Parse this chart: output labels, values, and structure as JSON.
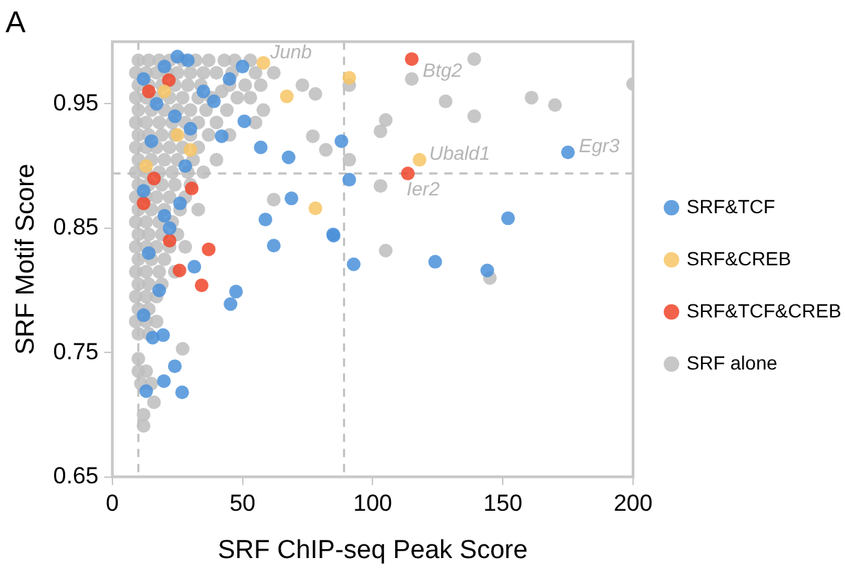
{
  "chart_data": {
    "type": "scatter",
    "title": "A",
    "xlabel": "SRF ChIP-seq Peak Score",
    "ylabel": "SRF Motif Score",
    "xlim": [
      0,
      200
    ],
    "xticks": [
      0,
      50,
      100,
      150,
      200
    ],
    "ylim": [
      0.65,
      1.0
    ],
    "yticks": [
      0.65,
      0.75,
      0.85,
      0.95
    ],
    "grid": false,
    "legend": "right",
    "marker": "circle",
    "ref_lines": [
      {
        "axis": "x",
        "value": 10,
        "color": "#c0c0c0",
        "line_style": "dashed"
      },
      {
        "axis": "x",
        "value": 89,
        "color": "#c0c0c0",
        "line_style": "dashed"
      },
      {
        "axis": "y",
        "value": 0.894,
        "color": "#c0c0c0",
        "line_style": "dashed"
      }
    ],
    "annotations": [
      {
        "text": "Junb",
        "x": 58,
        "y": 0.983
      },
      {
        "text": "Btg2",
        "x": 115,
        "y": 0.986
      },
      {
        "text": "Ubald1",
        "x": 118,
        "y": 0.905
      },
      {
        "text": "Egr3",
        "x": 175,
        "y": 0.911
      },
      {
        "text": "Ier2",
        "x": 113,
        "y": 0.894
      }
    ],
    "series": [
      {
        "name": "SRF&TCF",
        "color": "#4a90d9",
        "x": [
          50,
          39,
          42,
          50.7,
          57,
          67.7,
          88,
          91,
          68.8,
          58.8,
          84.8,
          25,
          29,
          175,
          152,
          124,
          144,
          62,
          85,
          92.7,
          31.5,
          47.5,
          45.4,
          15.5,
          19.5,
          24,
          19.8,
          13,
          26.8,
          12,
          20,
          17,
          24,
          15,
          28,
          12,
          20,
          26,
          14,
          22,
          18,
          12,
          30,
          35,
          45
        ],
        "values": [
          0.98,
          0.952,
          0.924,
          0.936,
          0.915,
          0.907,
          0.92,
          0.889,
          0.874,
          0.857,
          0.845,
          0.988,
          0.985,
          0.911,
          0.858,
          0.823,
          0.816,
          0.836,
          0.844,
          0.821,
          0.819,
          0.799,
          0.789,
          0.762,
          0.764,
          0.739,
          0.727,
          0.719,
          0.718,
          0.97,
          0.98,
          0.95,
          0.94,
          0.92,
          0.9,
          0.88,
          0.86,
          0.87,
          0.83,
          0.85,
          0.8,
          0.78,
          0.93,
          0.96,
          0.97
        ]
      },
      {
        "name": "SRF&CREB",
        "color": "#f7c565",
        "x": [
          58,
          91,
          67,
          78,
          30,
          118,
          20,
          13,
          25
        ],
        "values": [
          0.983,
          0.971,
          0.956,
          0.866,
          0.913,
          0.905,
          0.96,
          0.9,
          0.925
        ]
      },
      {
        "name": "SRF&TCF&CREB",
        "color": "#f0452a",
        "x": [
          115,
          113.5,
          30.5,
          21.7,
          37,
          25.8,
          34.3,
          16,
          12,
          22,
          14
        ],
        "values": [
          0.986,
          0.894,
          0.882,
          0.969,
          0.833,
          0.816,
          0.804,
          0.89,
          0.87,
          0.84,
          0.96
        ]
      },
      {
        "name": "SRF alone",
        "color": "#bdbdbd",
        "x": [
          139,
          115,
          91,
          200,
          128,
          161,
          170,
          139,
          105,
          103,
          103,
          91,
          105,
          145,
          58,
          42,
          73,
          78,
          82,
          77,
          62,
          27,
          12,
          12,
          10,
          10,
          14,
          18,
          22,
          27,
          32,
          37,
          43,
          47,
          53,
          9,
          13,
          17,
          21,
          25,
          30,
          35,
          40,
          46,
          55,
          62,
          10,
          14,
          19,
          24,
          29,
          34,
          45,
          51,
          57,
          9,
          13,
          17,
          22,
          27,
          33,
          38,
          48,
          53,
          10,
          15,
          20,
          25,
          30,
          36,
          44,
          9,
          13,
          18,
          23,
          28,
          33,
          40,
          55,
          10,
          14,
          19,
          24,
          30,
          37,
          45,
          9,
          13,
          17,
          22,
          27,
          33,
          10,
          15,
          20,
          25,
          31,
          40,
          9,
          13,
          18,
          23,
          29,
          35,
          10,
          14,
          19,
          24,
          30,
          9,
          13,
          17,
          22,
          28,
          10,
          15,
          20,
          26,
          33,
          9,
          13,
          18,
          23,
          10,
          14,
          19,
          25,
          9,
          13,
          17,
          22,
          28,
          10,
          15,
          20,
          9,
          13,
          18,
          24,
          10,
          14,
          19,
          9,
          13,
          17,
          10,
          14,
          9,
          13,
          17,
          10,
          14,
          10,
          13,
          11,
          15,
          16
        ],
        "values": [
          0.986,
          0.97,
          0.965,
          0.966,
          0.952,
          0.955,
          0.949,
          0.94,
          0.937,
          0.928,
          0.884,
          0.905,
          0.832,
          0.81,
          0.945,
          0.96,
          0.965,
          0.958,
          0.913,
          0.924,
          0.873,
          0.753,
          0.691,
          0.7,
          0.745,
          0.985,
          0.985,
          0.985,
          0.985,
          0.985,
          0.985,
          0.985,
          0.985,
          0.985,
          0.985,
          0.975,
          0.975,
          0.975,
          0.975,
          0.975,
          0.975,
          0.975,
          0.975,
          0.975,
          0.975,
          0.975,
          0.965,
          0.965,
          0.965,
          0.965,
          0.965,
          0.965,
          0.965,
          0.965,
          0.965,
          0.955,
          0.955,
          0.955,
          0.955,
          0.955,
          0.955,
          0.955,
          0.955,
          0.955,
          0.945,
          0.945,
          0.945,
          0.945,
          0.945,
          0.945,
          0.945,
          0.935,
          0.935,
          0.935,
          0.935,
          0.935,
          0.935,
          0.935,
          0.935,
          0.925,
          0.925,
          0.925,
          0.925,
          0.925,
          0.925,
          0.925,
          0.915,
          0.915,
          0.915,
          0.915,
          0.915,
          0.915,
          0.905,
          0.905,
          0.905,
          0.905,
          0.905,
          0.905,
          0.895,
          0.895,
          0.895,
          0.895,
          0.895,
          0.895,
          0.885,
          0.885,
          0.885,
          0.885,
          0.885,
          0.875,
          0.875,
          0.875,
          0.875,
          0.875,
          0.865,
          0.865,
          0.865,
          0.865,
          0.865,
          0.855,
          0.855,
          0.855,
          0.855,
          0.845,
          0.845,
          0.845,
          0.845,
          0.835,
          0.835,
          0.835,
          0.835,
          0.835,
          0.825,
          0.825,
          0.825,
          0.815,
          0.815,
          0.815,
          0.815,
          0.805,
          0.805,
          0.805,
          0.795,
          0.795,
          0.795,
          0.785,
          0.785,
          0.775,
          0.775,
          0.775,
          0.765,
          0.765,
          0.735,
          0.735,
          0.725,
          0.725,
          0.71
        ]
      }
    ]
  }
}
